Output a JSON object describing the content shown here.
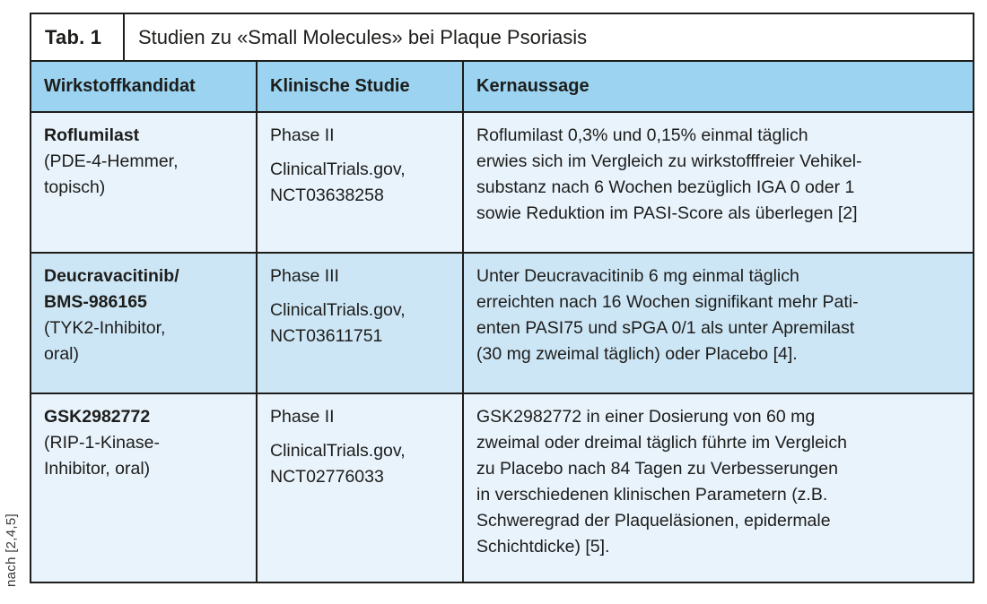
{
  "colors": {
    "border": "#1d1d1b",
    "header_bg": "#9bd3f0",
    "row_light_bg": "#e8f3fc",
    "row_medium_bg": "#cde6f6"
  },
  "table": {
    "label": "Tab. 1",
    "title": "Studien zu «Small Molecules» bei Plaque Psoriasis",
    "source_note": "nach [2,4,5]",
    "columns": {
      "candidate": "Wirkstoffkandidat",
      "study": "Klinische Studie",
      "message": "Kernaussage"
    },
    "rows": [
      {
        "candidate_name": "Roflumilast",
        "candidate_detail": "(PDE-4-Hemmer,\ntopisch)",
        "study_phase": "Phase II",
        "study_registry": "ClinicalTrials.gov,\nNCT03638258",
        "key_message": "Roflumilast 0,3% und 0,15% einmal täglich\nerwies sich im Vergleich zu wirkstofffreier Vehikel-\nsubstanz nach 6 Wochen bezüglich IGA 0 oder 1\nsowie Reduktion im PASI-Score als überlegen [2]"
      },
      {
        "candidate_name": "Deucravacitinib/\nBMS-986165",
        "candidate_detail": "(TYK2-Inhibitor,\noral)",
        "study_phase": "Phase III",
        "study_registry": "ClinicalTrials.gov,\nNCT03611751",
        "key_message": "Unter Deucravacitinib 6 mg einmal täglich\nerreichten nach 16 Wochen signifikant mehr Pati-\nenten PASI75 und sPGA 0/1 als unter Apremilast\n(30 mg zweimal täglich) oder Placebo [4]."
      },
      {
        "candidate_name": "GSK2982772",
        "candidate_detail": "(RIP-1-Kinase-\nInhibitor, oral)",
        "study_phase": "Phase II",
        "study_registry": "ClinicalTrials.gov,\nNCT02776033",
        "key_message": "GSK2982772 in einer Dosierung von 60 mg\nzweimal oder dreimal täglich führte im Vergleich\nzu Placebo nach 84 Tagen zu Verbesserungen\nin verschiedenen klinischen Parametern (z.B.\nSchweregrad der Plaqueläsionen, epidermale\nSchichtdicke) [5]."
      }
    ]
  }
}
